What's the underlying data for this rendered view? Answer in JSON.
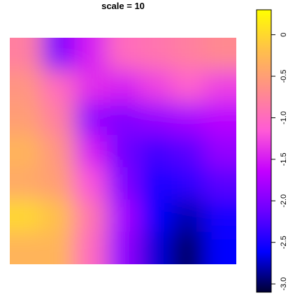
{
  "chart_data": {
    "type": "heatmap",
    "title": "scale =  10",
    "xlabel": "",
    "ylabel": "",
    "colorbar": {
      "range": [
        -3.1,
        0.3
      ],
      "ticks": [
        0,
        -0.5,
        -1.0,
        -1.5,
        -2.0,
        -2.5,
        -3.0
      ],
      "tick_labels": [
        "0",
        "-0.5",
        "-1.0",
        "-1.5",
        "-2.0",
        "-2.5",
        "-3.0"
      ],
      "colors": [
        "#000033",
        "#0000ff",
        "#6a00ff",
        "#c300ff",
        "#ff5ad6",
        "#ff8c8c",
        "#ffc04a",
        "#ffff00"
      ]
    },
    "grid": {
      "rows": 7,
      "cols": 7,
      "row_order": "top-to-bottom",
      "values": [
        [
          -0.8,
          -2.0,
          -1.5,
          -1.0,
          -0.9,
          -0.8,
          -0.7
        ],
        [
          -0.6,
          -1.0,
          -1.4,
          -1.5,
          -1.3,
          -1.1,
          -1.3
        ],
        [
          -0.5,
          -0.8,
          -1.9,
          -2.0,
          -1.9,
          -1.8,
          -1.7
        ],
        [
          -0.3,
          -0.6,
          -1.5,
          -2.1,
          -2.3,
          -2.2,
          -1.9
        ],
        [
          -0.4,
          -0.5,
          -1.2,
          -2.0,
          -2.5,
          -2.4,
          -2.2
        ],
        [
          0.0,
          -0.2,
          -0.9,
          -1.8,
          -2.6,
          -2.8,
          -2.5
        ],
        [
          -0.3,
          -0.3,
          -1.0,
          -1.9,
          -2.7,
          -3.0,
          -2.6
        ]
      ]
    }
  }
}
